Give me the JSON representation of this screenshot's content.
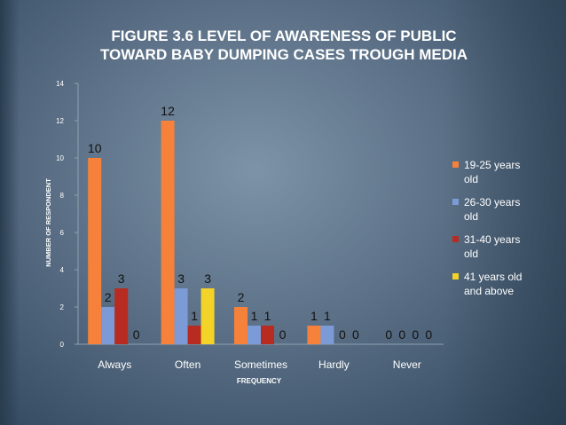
{
  "title_lines": [
    "FIGURE 3.6 LEVEL OF AWARENESS OF PUBLIC",
    "TOWARD BABY DUMPING CASES TROUGH MEDIA"
  ],
  "chart_data": {
    "type": "bar",
    "categories": [
      "Always",
      "Often",
      "Sometimes",
      "Hardly",
      "Never"
    ],
    "series": [
      {
        "name": "19-25 years old",
        "values": [
          10,
          12,
          2,
          1,
          0
        ],
        "color": "#f5813a"
      },
      {
        "name": "26-30 years old",
        "values": [
          2,
          3,
          1,
          1,
          0
        ],
        "color": "#7c9ad6"
      },
      {
        "name": "31-40 years old",
        "values": [
          3,
          1,
          1,
          0,
          0
        ],
        "color": "#b82b20"
      },
      {
        "name": "41 years old and above",
        "values": [
          0,
          3,
          0,
          0,
          0
        ],
        "color": "#f3d328"
      }
    ],
    "title": "FIGURE 3.6 LEVEL OF AWARENESS OF PUBLIC TOWARD BABY DUMPING CASES TROUGH MEDIA",
    "xlabel": "FREQUENCY",
    "ylabel": "NUMBER OF RESPONDENT",
    "ylim": [
      0,
      14
    ],
    "yticks": [
      0,
      2,
      4,
      6,
      8,
      10,
      12,
      14
    ],
    "legend_position": "right",
    "legend_lines": [
      [
        "19-25 years",
        "old"
      ],
      [
        "26-30 years",
        "old"
      ],
      [
        "31-40 years",
        "old"
      ],
      [
        "41 years old",
        "and above"
      ]
    ],
    "grid": false
  }
}
